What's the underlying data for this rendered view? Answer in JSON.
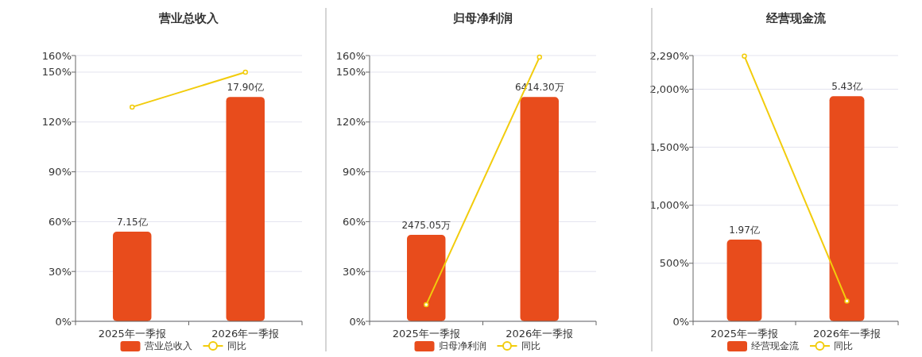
{
  "chart_data": [
    {
      "type": "bar",
      "title": "营业总收入",
      "categories": [
        "2025年一季报",
        "2026年一季报"
      ],
      "series": [
        {
          "name": "营业总收入",
          "axis": "y2",
          "color": "#e84c1c",
          "values": [
            7.15,
            17.9
          ],
          "value_labels": [
            "7.15亿",
            "17.90亿"
          ]
        },
        {
          "name": "同比",
          "type": "line",
          "color": "#f2cc0c",
          "values": [
            129,
            150
          ]
        }
      ],
      "ylim": [
        0,
        160
      ],
      "yticks": [
        {
          "value": 0,
          "label": "0%"
        },
        {
          "value": 30,
          "label": "30%"
        },
        {
          "value": 60,
          "label": "60%"
        },
        {
          "value": 90,
          "label": "90%"
        },
        {
          "value": 120,
          "label": "120%"
        },
        {
          "value": 150,
          "label": "150%"
        },
        {
          "value": 160,
          "label": "160%"
        }
      ],
      "y2lim": [
        0,
        21.2
      ],
      "grid": "y",
      "legend": "bottom",
      "marker": "circle"
    },
    {
      "type": "bar",
      "title": "归母净利润",
      "categories": [
        "2025年一季报",
        "2026年一季报"
      ],
      "series": [
        {
          "name": "归母净利润",
          "axis": "y2",
          "color": "#e84c1c",
          "values": [
            2475.05,
            6414.3
          ],
          "value_labels": [
            "2475.05万",
            "6414.30万"
          ]
        },
        {
          "name": "同比",
          "type": "line",
          "color": "#f2cc0c",
          "values": [
            10,
            159
          ]
        }
      ],
      "ylim": [
        0,
        160
      ],
      "yticks": [
        {
          "value": 0,
          "label": "0%"
        },
        {
          "value": 30,
          "label": "30%"
        },
        {
          "value": 60,
          "label": "60%"
        },
        {
          "value": 90,
          "label": "90%"
        },
        {
          "value": 120,
          "label": "120%"
        },
        {
          "value": 150,
          "label": "150%"
        },
        {
          "value": 160,
          "label": "160%"
        }
      ],
      "y2lim": [
        0,
        7602
      ],
      "grid": "y",
      "legend": "bottom",
      "marker": "circle"
    },
    {
      "type": "bar",
      "title": "经营现金流",
      "categories": [
        "2025年一季报",
        "2026年一季报"
      ],
      "series": [
        {
          "name": "经营现金流",
          "axis": "y2",
          "color": "#e84c1c",
          "values": [
            1.97,
            5.43
          ],
          "value_labels": [
            "1.97亿",
            "5.43亿"
          ]
        },
        {
          "name": "同比",
          "type": "line",
          "color": "#f2cc0c",
          "values": [
            2285,
            175
          ]
        }
      ],
      "ylim": [
        0,
        2290
      ],
      "yticks": [
        {
          "value": 0,
          "label": "0%"
        },
        {
          "value": 500,
          "label": "500%"
        },
        {
          "value": 1000,
          "label": "1,000%"
        },
        {
          "value": 1500,
          "label": "1,500%"
        },
        {
          "value": 2000,
          "label": "2,000%"
        },
        {
          "value": 2290,
          "label": "2,290%"
        }
      ],
      "y2lim": [
        0,
        6.41
      ],
      "grid": "y",
      "legend": "bottom",
      "marker": "circle"
    }
  ]
}
